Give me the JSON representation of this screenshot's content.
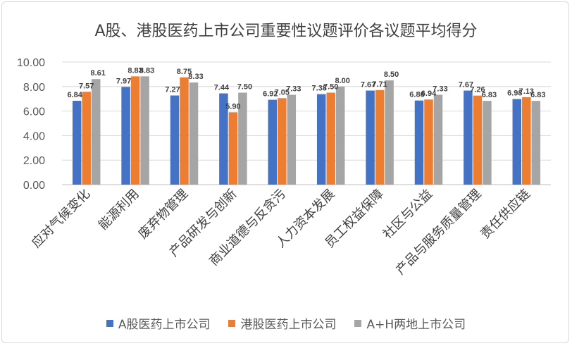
{
  "chart_data": {
    "type": "bar",
    "title": "A股、港股医药上市公司重要性议题评价各议题平均得分",
    "categories": [
      "应对气候变化",
      "能源利用",
      "废弃物管理",
      "产品研发与创新",
      "商业道德与反贪污",
      "人力资本发展",
      "员工权益保障",
      "社区与公益",
      "产品与服务质量管理",
      "责任供应链"
    ],
    "series": [
      {
        "name": "A股医药上市公司",
        "color": "#4472C4",
        "values": [
          6.84,
          7.97,
          7.27,
          7.44,
          6.92,
          7.38,
          7.67,
          6.86,
          7.67,
          6.98
        ]
      },
      {
        "name": "港股医药上市公司",
        "color": "#ED7D31",
        "values": [
          7.57,
          8.83,
          8.75,
          5.9,
          7.05,
          7.5,
          7.71,
          6.94,
          7.26,
          7.13
        ]
      },
      {
        "name": "A+H两地上市公司",
        "color": "#A5A5A5",
        "values": [
          8.61,
          8.83,
          8.33,
          7.5,
          7.33,
          8.0,
          8.5,
          7.33,
          6.83,
          6.83
        ]
      }
    ],
    "y_ticks": [
      "0.00",
      "2.00",
      "4.00",
      "6.00",
      "8.00",
      "10.00"
    ],
    "ylim": [
      0,
      10
    ],
    "legend_position": "bottom"
  }
}
